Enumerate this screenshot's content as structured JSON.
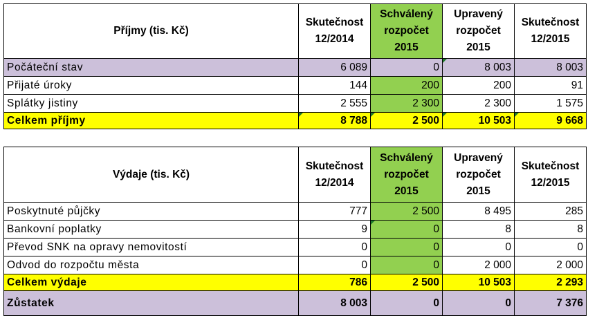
{
  "columns": [
    "Skutečnost 12/2014",
    "Schválený rozpočet 2015",
    "Upravený rozpočet 2015",
    "Skutečnost 12/2015"
  ],
  "column_lines": [
    [
      "Skutečnost",
      "12/2014"
    ],
    [
      "Schválený",
      "rozpočet",
      "2015"
    ],
    [
      "Upravený",
      "rozpočet",
      "2015"
    ],
    [
      "Skutečnost",
      "12/2015"
    ]
  ],
  "income": {
    "title": "Příjmy (tis. Kč)",
    "rows": [
      {
        "label": "Počáteční stav",
        "values": [
          "6 089",
          "0",
          "8 003",
          "8 003"
        ]
      },
      {
        "label": "Přijaté úroky",
        "values": [
          "144",
          "200",
          "200",
          "91"
        ]
      },
      {
        "label": "Splátky jistiny",
        "values": [
          "2 555",
          "2 300",
          "2 300",
          "1 575"
        ]
      }
    ],
    "total": {
      "label": "Celkem příjmy",
      "values": [
        "8 788",
        "2 500",
        "10 503",
        "9 668"
      ]
    }
  },
  "expenses": {
    "title": "Výdaje (tis. Kč)",
    "rows": [
      {
        "label": "Poskytnuté půjčky",
        "values": [
          "777",
          "2 500",
          "8 495",
          "285"
        ]
      },
      {
        "label": "Bankovní poplatky",
        "values": [
          "9",
          "0",
          "8",
          "8"
        ]
      },
      {
        "label": "Převod SNK  na opravy nemovitostí",
        "values": [
          "0",
          "0",
          "0",
          "0"
        ]
      },
      {
        "label": "Odvod do rozpočtu města",
        "values": [
          "0",
          "0",
          "2 000",
          "2 000"
        ]
      }
    ],
    "total": {
      "label": "Celkem výdaje",
      "values": [
        "786",
        "2 500",
        "10 503",
        "2 293"
      ]
    }
  },
  "balance": {
    "label": "Zůstatek",
    "values": [
      "8 003",
      "0",
      "0",
      "7 376"
    ]
  },
  "colors": {
    "lilac": "#ccc0da",
    "green": "#92d050",
    "yellow": "#ffff00"
  }
}
